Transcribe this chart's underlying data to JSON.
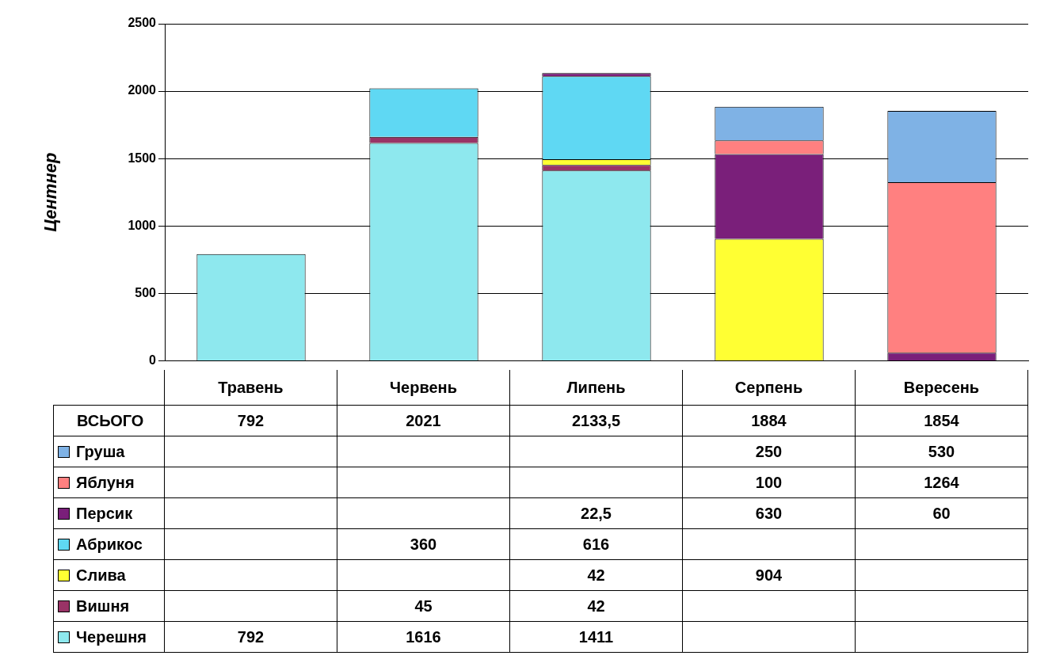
{
  "chart_data": {
    "type": "bar",
    "stacked": true,
    "ylabel": "Центнер",
    "categories": [
      "Травень",
      "Червень",
      "Липень",
      "Серпень",
      "Вересень"
    ],
    "ylim": [
      0,
      2500
    ],
    "yticks": [
      0,
      500,
      1000,
      1500,
      2000,
      2500
    ],
    "grid": "y",
    "legend": "bottom",
    "series": [
      {
        "name": "Черешня",
        "color": "#8ee8ee",
        "values": [
          792,
          1616,
          1411,
          null,
          null
        ],
        "value_labels": [
          "792",
          "1616",
          "1411",
          null,
          null
        ]
      },
      {
        "name": "Вишня",
        "color": "#993366",
        "values": [
          null,
          45,
          42,
          null,
          null
        ],
        "value_labels": [
          null,
          "45",
          "42",
          null,
          null
        ]
      },
      {
        "name": "Слива",
        "color": "#ffff33",
        "values": [
          null,
          null,
          42,
          904,
          null
        ],
        "value_labels": [
          null,
          null,
          "42",
          "904",
          null
        ]
      },
      {
        "name": "Абрикос",
        "color": "#5fd8f3",
        "values": [
          null,
          360,
          616,
          null,
          null
        ],
        "value_labels": [
          null,
          "360",
          "616",
          null,
          null
        ]
      },
      {
        "name": "Персик",
        "color": "#7a1f7a",
        "values": [
          null,
          null,
          22.5,
          630,
          60
        ],
        "value_labels": [
          null,
          null,
          "22,5",
          "630",
          "60"
        ]
      },
      {
        "name": "Яблуня",
        "color": "#ff8080",
        "values": [
          null,
          null,
          null,
          100,
          1264
        ],
        "value_labels": [
          null,
          null,
          null,
          "100",
          "1264"
        ]
      },
      {
        "name": "Груша",
        "color": "#7fb2e5",
        "values": [
          null,
          null,
          null,
          250,
          530
        ],
        "value_labels": [
          null,
          null,
          null,
          "250",
          "530"
        ]
      }
    ],
    "annotations": [
      "ВСЬОГО",
      "792",
      "2021",
      "2133,5",
      "1884",
      "1854"
    ]
  }
}
